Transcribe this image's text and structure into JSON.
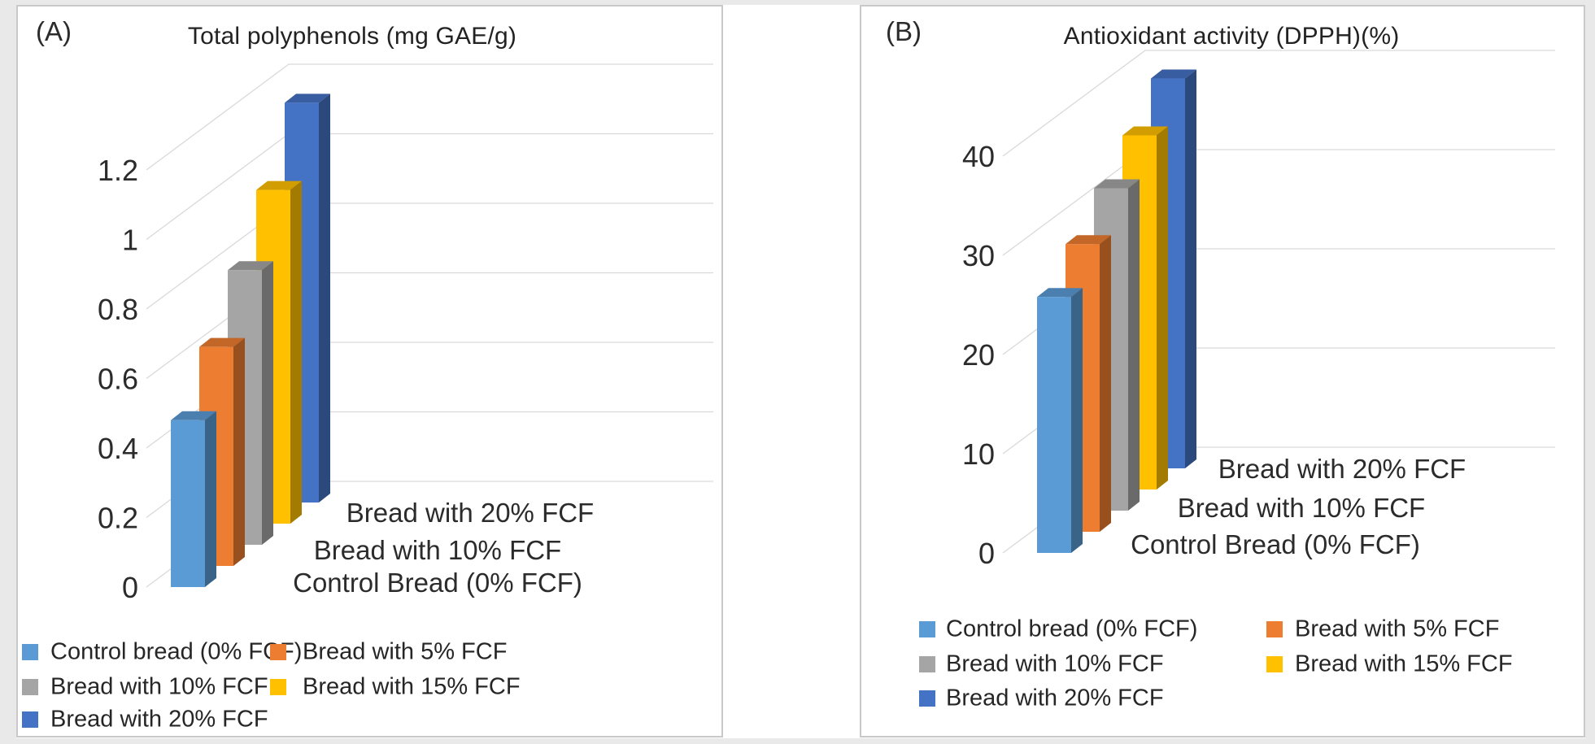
{
  "figure": {
    "background_color": "#e9e9e9",
    "panel_background": "#ffffff",
    "panel_border_color": "#c9c9c9",
    "gridline_color": "#d9d9d9",
    "text_color": "#262626"
  },
  "chart_data": [
    {
      "type": "bar3d",
      "panel_label": "(A)",
      "title": "Total polyphenols (mg GAE/g)",
      "series": [
        {
          "name": "Control bread (0% FCF)",
          "value": 0.48,
          "color": "#5B9BD5"
        },
        {
          "name": "Bread with 5% FCF",
          "value": 0.63,
          "color": "#ED7D31"
        },
        {
          "name": "Bread with 10% FCF",
          "value": 0.79,
          "color": "#A5A5A5"
        },
        {
          "name": "Bread with 15% FCF",
          "value": 0.96,
          "color": "#FFC000"
        },
        {
          "name": "Bread with 20% FCF",
          "value": 1.15,
          "color": "#4472C4"
        }
      ],
      "y_axis": {
        "min": 0,
        "max": 1.2,
        "step": 0.2,
        "tick_labels": [
          "0",
          "0.2",
          "0.4",
          "0.6",
          "0.8",
          "1",
          "1.2"
        ]
      },
      "depth_axis_labels": [
        "Bread with 20% FCF",
        "Bread with 10% FCF",
        "Control Bread (0% FCF)"
      ],
      "legend": {
        "column1": [
          "Control bread (0% FCF)",
          "Bread with 10% FCF",
          "Bread with 20% FCF"
        ],
        "column2": [
          "Bread with 5% FCF",
          "Bread with 15% FCF"
        ]
      },
      "grid": true,
      "legend_position": "bottom"
    },
    {
      "type": "bar3d",
      "panel_label": "(B)",
      "title": "Antioxidant activity (DPPH)(%)",
      "series": [
        {
          "name": "Control bread (0% FCF)",
          "value": 25.8,
          "color": "#5B9BD5"
        },
        {
          "name": "Bread with 5% FCF",
          "value": 29.0,
          "color": "#ED7D31"
        },
        {
          "name": "Bread with 10% FCF",
          "value": 32.5,
          "color": "#A5A5A5"
        },
        {
          "name": "Bread with 15% FCF",
          "value": 35.7,
          "color": "#FFC000"
        },
        {
          "name": "Bread with 20% FCF",
          "value": 39.3,
          "color": "#4472C4"
        }
      ],
      "y_axis": {
        "min": 0,
        "max": 40,
        "step": 10,
        "tick_labels": [
          "0",
          "10",
          "20",
          "30",
          "40"
        ]
      },
      "depth_axis_labels": [
        "Bread with 20% FCF",
        "Bread with 10% FCF",
        "Control Bread (0% FCF)"
      ],
      "legend": {
        "column1": [
          "Control bread (0% FCF)",
          "Bread with 10% FCF",
          "Bread with 20% FCF"
        ],
        "column2": [
          "Bread with 5% FCF",
          "Bread with 15% FCF"
        ]
      },
      "grid": true,
      "legend_position": "bottom"
    }
  ]
}
